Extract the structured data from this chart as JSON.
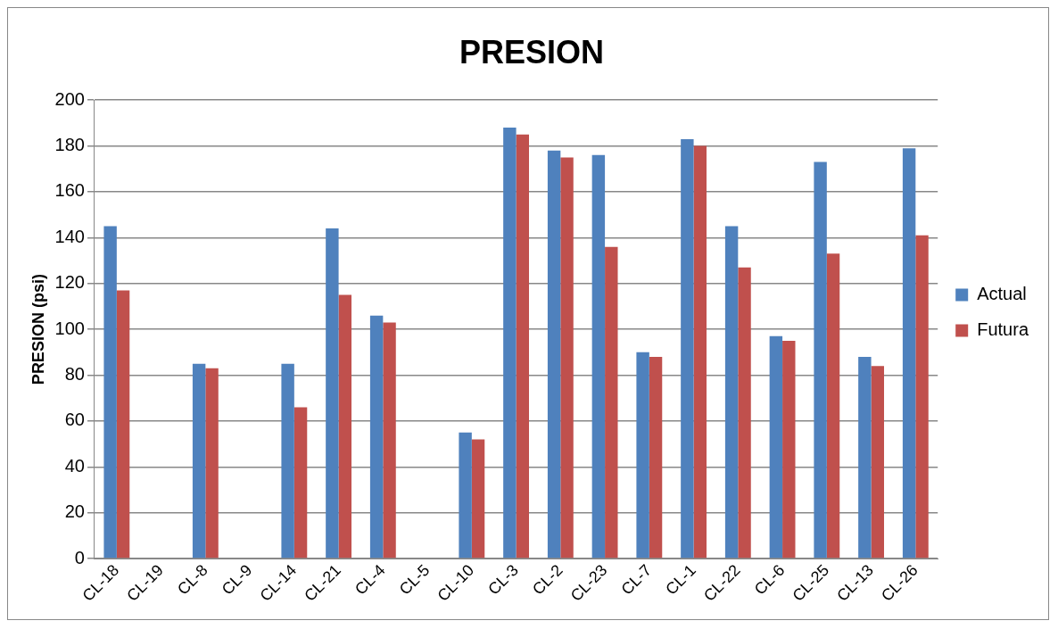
{
  "chart_data": {
    "type": "bar",
    "title": "PRESION",
    "ylabel": "PRESION (psi)",
    "categories": [
      "CL-18",
      "CL-19",
      "CL-8",
      "CL-9",
      "CL-14",
      "CL-21",
      "CL-4",
      "CL-5",
      "CL-10",
      "CL-3",
      "CL-2",
      "CL-23",
      "CL-7",
      "CL-1",
      "CL-22",
      "CL-6",
      "CL-25",
      "CL-13",
      "CL-26"
    ],
    "series": [
      {
        "name": "Actual",
        "color": "#4f81bd",
        "values": [
          145,
          null,
          85,
          null,
          85,
          144,
          106,
          null,
          55,
          188,
          178,
          176,
          90,
          183,
          145,
          97,
          173,
          88,
          179
        ]
      },
      {
        "name": "Futura",
        "color": "#c0504d",
        "values": [
          117,
          null,
          83,
          null,
          66,
          115,
          103,
          null,
          52,
          185,
          175,
          136,
          88,
          180,
          127,
          95,
          133,
          84,
          141
        ]
      }
    ],
    "ylim": [
      0,
      200
    ],
    "yticks": [
      0,
      20,
      40,
      60,
      80,
      100,
      120,
      140,
      160,
      180,
      200
    ],
    "grid": "y",
    "legend": "right"
  }
}
